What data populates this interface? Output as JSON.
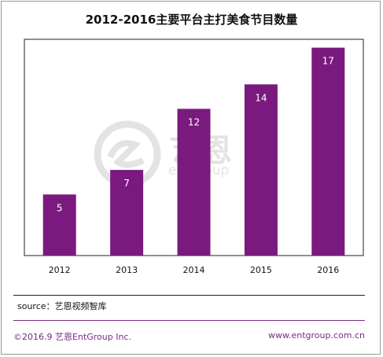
{
  "chart_data": {
    "type": "bar",
    "title": "2012-2016主要平台主打美食节目数量",
    "categories": [
      "2012",
      "2013",
      "2014",
      "2015",
      "2016"
    ],
    "values": [
      5,
      7,
      12,
      14,
      17
    ],
    "ylim": [
      0,
      18
    ],
    "grid": false,
    "bar_color": "#7a1a7f",
    "xlabel": "",
    "ylabel": ""
  },
  "source": "source：艺恩视频智库",
  "footer": {
    "copyright": "©2016.9  艺恩EntGroup Inc.",
    "website": "www.entgroup.com.cn"
  },
  "watermark": {
    "brand_cn": "艺恩",
    "brand_en": "entgroup"
  },
  "colors": {
    "accent": "#7a2a86",
    "plot_border": "#222222"
  }
}
